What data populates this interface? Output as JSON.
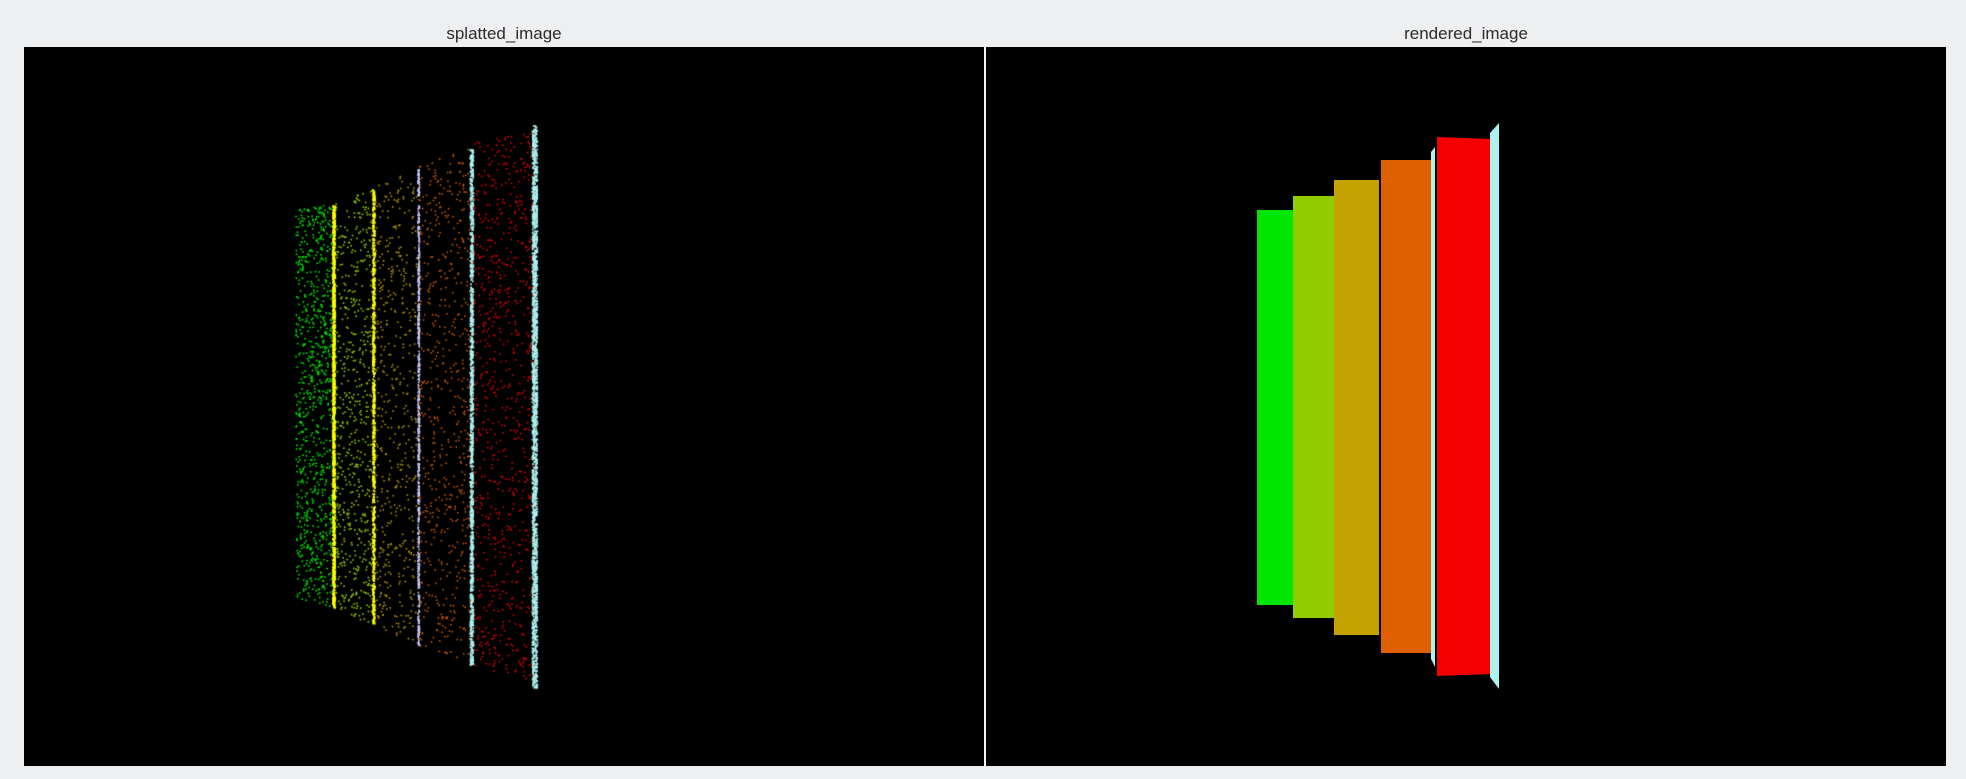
{
  "panels": {
    "left": {
      "title": "splatted_image"
    },
    "right": {
      "title": "rendered_image"
    }
  },
  "colors": {
    "page_background": "#eeeff1",
    "canvas_background": "#000000",
    "divider": "#f4f4f4",
    "green": "#00e600",
    "yellow_green": "#8fcc00",
    "olive": "#c4a200",
    "orange": "#e06000",
    "red": "#f50000",
    "cyan": "#aef2f0",
    "yellow": "#ffff00",
    "lavender": "#c8c8ff"
  }
}
